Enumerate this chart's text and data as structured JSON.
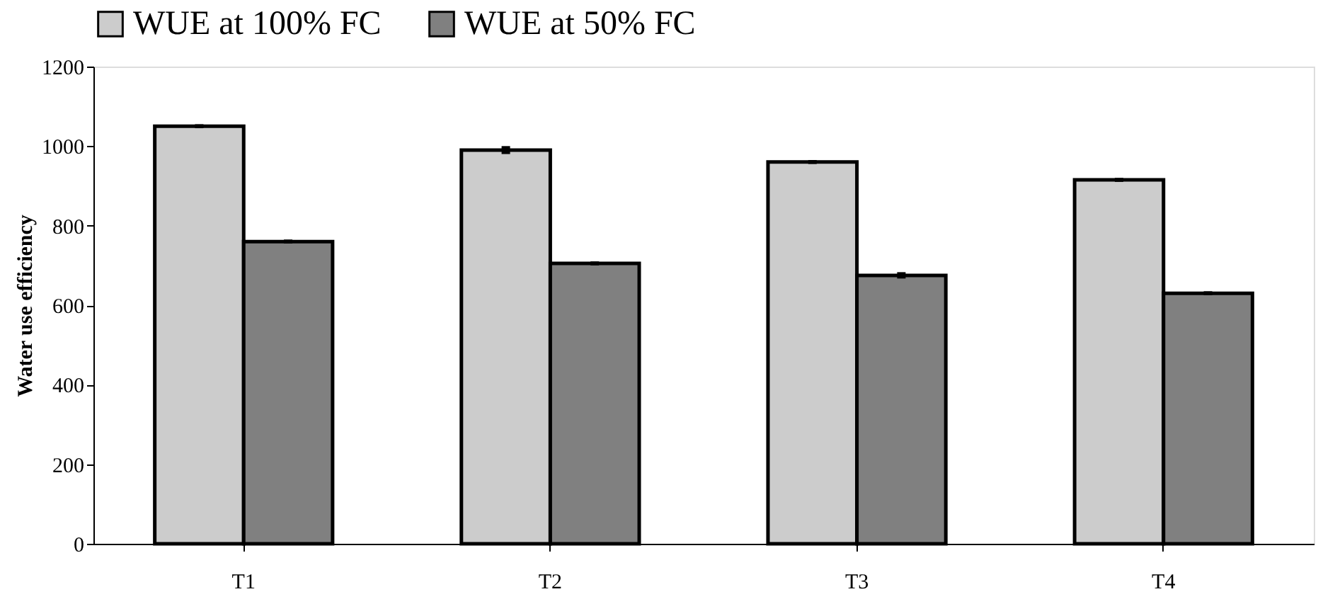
{
  "chart_data": {
    "type": "bar",
    "ylabel": "Water use efficiency",
    "categories": [
      "T1",
      "T2",
      "T3",
      "T4"
    ],
    "series": [
      {
        "name": "WUE at 100% FC",
        "color": "#cccccc",
        "values": [
          1050,
          990,
          960,
          915
        ],
        "errors": [
          5,
          10,
          5,
          5
        ]
      },
      {
        "name": "WUE at 50% FC",
        "color": "#808080",
        "values": [
          760,
          705,
          675,
          630
        ],
        "errors": [
          5,
          5,
          8,
          5
        ]
      }
    ],
    "ylim": [
      0,
      1200
    ],
    "yticks": [
      0,
      200,
      400,
      600,
      800,
      1000,
      1200
    ],
    "grid": false,
    "legend": "top"
  }
}
